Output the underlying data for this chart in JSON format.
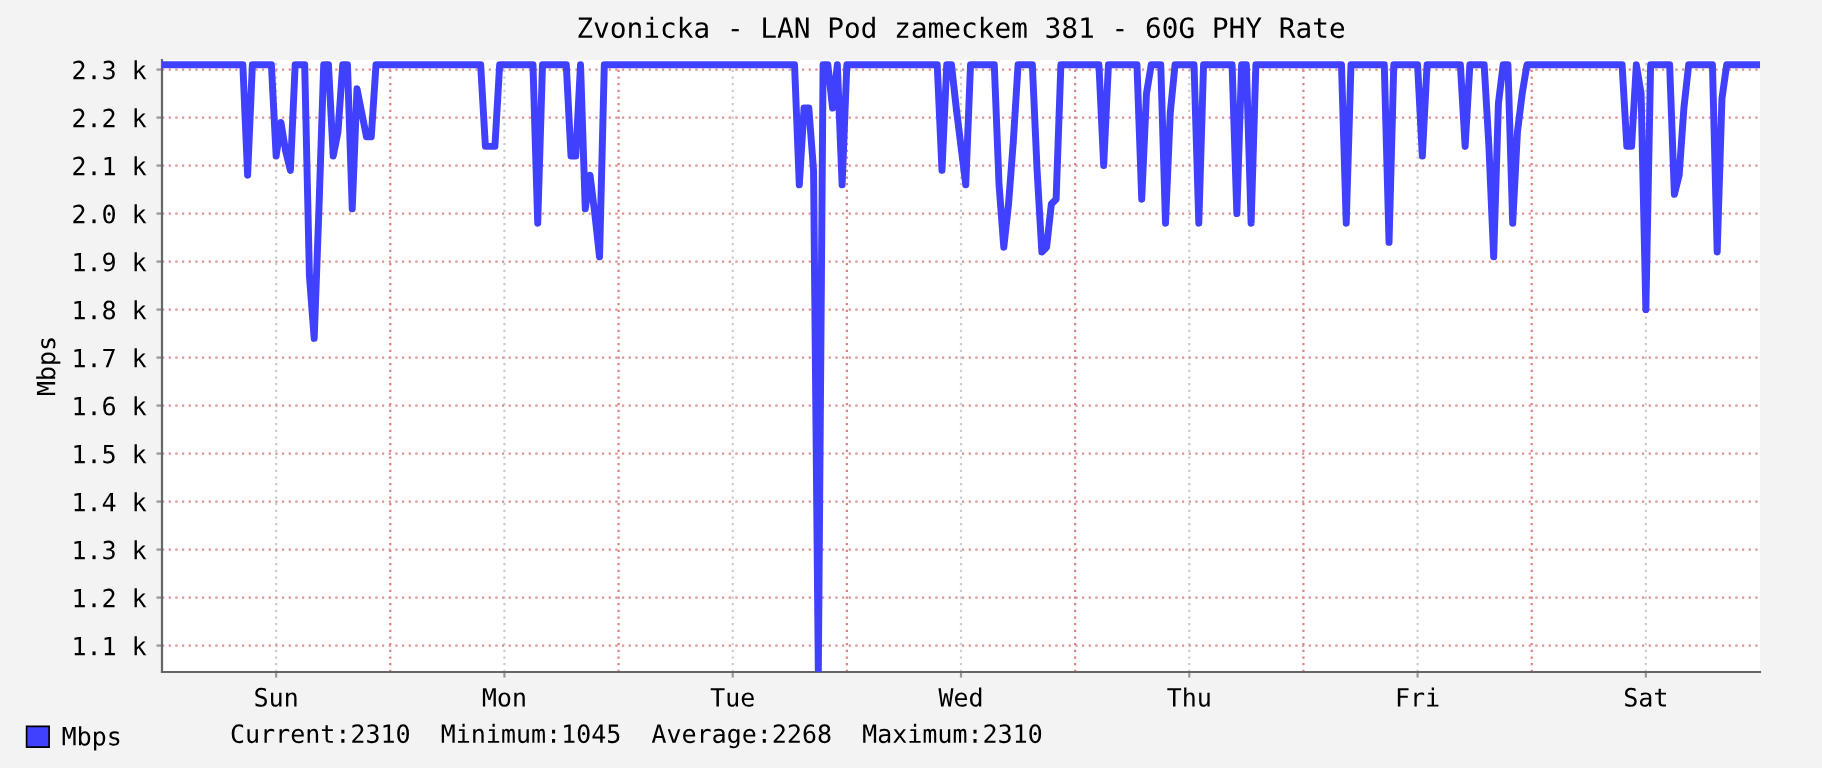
{
  "chart_data": {
    "type": "line",
    "title": "Zvonicka - LAN Pod zameckem 381 - 60G PHY Rate",
    "ylabel": "Mbps",
    "annotations": [
      "Current:2310  Minimum:1045  Average:2268  Maximum:2310"
    ],
    "ylim": [
      1045,
      2320
    ],
    "yticks": [
      {
        "value": 1100,
        "label": "1.1 k"
      },
      {
        "value": 1200,
        "label": "1.2 k"
      },
      {
        "value": 1300,
        "label": "1.3 k"
      },
      {
        "value": 1400,
        "label": "1.4 k"
      },
      {
        "value": 1500,
        "label": "1.5 k"
      },
      {
        "value": 1600,
        "label": "1.6 k"
      },
      {
        "value": 1700,
        "label": "1.7 k"
      },
      {
        "value": 1800,
        "label": "1.8 k"
      },
      {
        "value": 1900,
        "label": "1.9 k"
      },
      {
        "value": 2000,
        "label": "2.0 k"
      },
      {
        "value": 2100,
        "label": "2.1 k"
      },
      {
        "value": 2200,
        "label": "2.2 k"
      },
      {
        "value": 2300,
        "label": "2.3 k"
      }
    ],
    "grid": true,
    "legend": "bottom",
    "marker": "none",
    "line_style": "solid",
    "categories": [
      null,
      null,
      null,
      null,
      null,
      null,
      null,
      null,
      null,
      null,
      null,
      null,
      null,
      null,
      null,
      null,
      null,
      null,
      null,
      null,
      null,
      null,
      null,
      null,
      "Sun",
      null,
      null,
      null,
      null,
      null,
      null,
      null,
      null,
      null,
      null,
      null,
      null,
      null,
      null,
      null,
      null,
      null,
      null,
      null,
      null,
      null,
      null,
      null,
      null,
      null,
      null,
      null,
      null,
      null,
      null,
      null,
      null,
      null,
      null,
      null,
      null,
      null,
      null,
      null,
      null,
      null,
      null,
      null,
      null,
      null,
      null,
      null,
      "Mon",
      null,
      null,
      null,
      null,
      null,
      null,
      null,
      null,
      null,
      null,
      null,
      null,
      null,
      null,
      null,
      null,
      null,
      null,
      null,
      null,
      null,
      null,
      null,
      null,
      null,
      null,
      null,
      null,
      null,
      null,
      null,
      null,
      null,
      null,
      null,
      null,
      null,
      null,
      null,
      null,
      null,
      null,
      null,
      null,
      null,
      null,
      null,
      "Tue",
      null,
      null,
      null,
      null,
      null,
      null,
      null,
      null,
      null,
      null,
      null,
      null,
      null,
      null,
      null,
      null,
      null,
      null,
      null,
      null,
      null,
      null,
      null,
      null,
      null,
      null,
      null,
      null,
      null,
      null,
      null,
      null,
      null,
      null,
      null,
      null,
      null,
      null,
      null,
      null,
      null,
      null,
      null,
      null,
      null,
      null,
      null,
      "Wed",
      null,
      null,
      null,
      null,
      null,
      null,
      null,
      null,
      null,
      null,
      null,
      null,
      null,
      null,
      null,
      null,
      null,
      null,
      null,
      null,
      null,
      null,
      null,
      null,
      null,
      null,
      null,
      null,
      null,
      null,
      null,
      null,
      null,
      null,
      null,
      null,
      null,
      null,
      null,
      null,
      null,
      null,
      null,
      null,
      null,
      null,
      null,
      "Thu",
      null,
      null,
      null,
      null,
      null,
      null,
      null,
      null,
      null,
      null,
      null,
      null,
      null,
      null,
      null,
      null,
      null,
      null,
      null,
      null,
      null,
      null,
      null,
      null,
      null,
      null,
      null,
      null,
      null,
      null,
      null,
      null,
      null,
      null,
      null,
      null,
      null,
      null,
      null,
      null,
      null,
      null,
      null,
      null,
      null,
      null,
      null,
      "Fri",
      null,
      null,
      null,
      null,
      null,
      null,
      null,
      null,
      null,
      null,
      null,
      null,
      null,
      null,
      null,
      null,
      null,
      null,
      null,
      null,
      null,
      null,
      null,
      null,
      null,
      null,
      null,
      null,
      null,
      null,
      null,
      null,
      null,
      null,
      null,
      null,
      null,
      null,
      null,
      null,
      null,
      null,
      null,
      null,
      null,
      null,
      null,
      "Sat",
      null,
      null,
      null,
      null,
      null,
      null,
      null,
      null,
      null,
      null,
      null,
      null,
      null,
      null,
      null,
      null,
      null,
      null,
      null,
      null,
      null,
      null,
      null,
      null
    ],
    "series": [
      {
        "name": "Mbps",
        "color": "#4040ff",
        "values": [
          2310,
          2310,
          2310,
          2310,
          2310,
          2310,
          2310,
          2310,
          2310,
          2310,
          2310,
          2310,
          2310,
          2310,
          2310,
          2310,
          2310,
          2310,
          2080,
          2310,
          2310,
          2310,
          2310,
          2310,
          2120,
          2190,
          2130,
          2090,
          2310,
          2310,
          2310,
          1870,
          1740,
          2010,
          2310,
          2310,
          2120,
          2170,
          2310,
          2310,
          2010,
          2260,
          2210,
          2160,
          2160,
          2310,
          2310,
          2310,
          2310,
          2310,
          2310,
          2310,
          2310,
          2310,
          2310,
          2310,
          2310,
          2310,
          2310,
          2310,
          2310,
          2310,
          2310,
          2310,
          2310,
          2310,
          2310,
          2310,
          2140,
          2140,
          2140,
          2310,
          2310,
          2310,
          2310,
          2310,
          2310,
          2310,
          2310,
          1980,
          2310,
          2310,
          2310,
          2310,
          2310,
          2310,
          2120,
          2120,
          2310,
          2010,
          2080,
          2000,
          1910,
          2310,
          2310,
          2310,
          2310,
          2310,
          2310,
          2310,
          2310,
          2310,
          2310,
          2310,
          2310,
          2310,
          2310,
          2310,
          2310,
          2310,
          2310,
          2310,
          2310,
          2310,
          2310,
          2310,
          2310,
          2310,
          2310,
          2310,
          2310,
          2310,
          2310,
          2310,
          2310,
          2310,
          2310,
          2310,
          2310,
          2310,
          2310,
          2310,
          2310,
          2310,
          2060,
          2220,
          2220,
          2090,
          1045,
          2310,
          2310,
          2220,
          2310,
          2060,
          2310,
          2310,
          2310,
          2310,
          2310,
          2310,
          2310,
          2310,
          2310,
          2310,
          2310,
          2310,
          2310,
          2310,
          2310,
          2310,
          2310,
          2310,
          2310,
          2310,
          2090,
          2310,
          2310,
          2220,
          2140,
          2060,
          2310,
          2310,
          2310,
          2310,
          2310,
          2310,
          2060,
          1930,
          2020,
          2150,
          2310,
          2310,
          2310,
          2310,
          2090,
          1920,
          1930,
          2020,
          2030,
          2310,
          2310,
          2310,
          2310,
          2310,
          2310,
          2310,
          2310,
          2310,
          2100,
          2310,
          2310,
          2310,
          2310,
          2310,
          2310,
          2310,
          2030,
          2250,
          2310,
          2310,
          2310,
          1980,
          2210,
          2310,
          2310,
          2310,
          2310,
          2310,
          1980,
          2310,
          2310,
          2310,
          2310,
          2310,
          2310,
          2310,
          2000,
          2310,
          2310,
          1980,
          2310,
          2310,
          2310,
          2310,
          2310,
          2310,
          2310,
          2310,
          2310,
          2310,
          2310,
          2310,
          2310,
          2310,
          2310,
          2310,
          2310,
          2310,
          2310,
          1980,
          2310,
          2310,
          2310,
          2310,
          2310,
          2310,
          2310,
          2310,
          1940,
          2310,
          2310,
          2310,
          2310,
          2310,
          2310,
          2120,
          2310,
          2310,
          2310,
          2310,
          2310,
          2310,
          2310,
          2310,
          2140,
          2310,
          2310,
          2310,
          2310,
          2140,
          1910,
          2230,
          2310,
          2310,
          1980,
          2170,
          2250,
          2310,
          2310,
          2310,
          2310,
          2310,
          2310,
          2310,
          2310,
          2310,
          2310,
          2310,
          2310,
          2310,
          2310,
          2310,
          2310,
          2310,
          2310,
          2310,
          2310,
          2310,
          2140,
          2140,
          2310,
          2250,
          1800,
          2310,
          2310,
          2310,
          2310,
          2310,
          2040,
          2080,
          2220,
          2310,
          2310,
          2310,
          2310,
          2310,
          2310,
          1920,
          2240,
          2310,
          2310,
          2310,
          2310,
          2310,
          2310,
          2310,
          2310
        ]
      }
    ]
  }
}
